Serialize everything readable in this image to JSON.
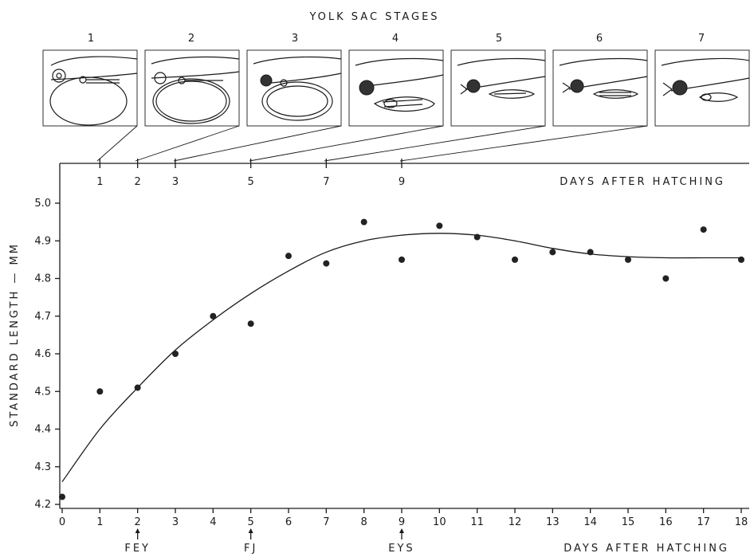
{
  "chart_data": {
    "type": "scatter",
    "title": "YOLK SAC STAGES",
    "xlabel": "DAYS AFTER HATCHING",
    "top_xlabel": "DAYS AFTER HATCHING",
    "ylabel": "STANDARD LENGTH  —  MM",
    "xlim": [
      0,
      18
    ],
    "ylim": [
      4.2,
      5.0
    ],
    "xticks": [
      0,
      1,
      2,
      3,
      4,
      5,
      6,
      7,
      8,
      9,
      10,
      11,
      12,
      13,
      14,
      15,
      16,
      17,
      18
    ],
    "yticks": [
      4.2,
      4.3,
      4.4,
      4.5,
      4.6,
      4.7,
      4.8,
      4.9,
      5.0
    ],
    "ytick_labels": [
      "4.2",
      "4.3",
      "4.4",
      "4.5",
      "4.6",
      "4.7",
      "4.8",
      "4.9",
      "5.0"
    ],
    "grid": false,
    "series": [
      {
        "kind": "points",
        "x": [
          0,
          1,
          2,
          3,
          4,
          5,
          6,
          7,
          8,
          9,
          10,
          11,
          12,
          13,
          14,
          15,
          16,
          17,
          18
        ],
        "y": [
          4.22,
          4.5,
          4.51,
          4.6,
          4.7,
          4.68,
          4.86,
          4.84,
          4.95,
          4.85,
          4.94,
          4.91,
          4.85,
          4.87,
          4.87,
          4.85,
          4.8,
          4.93,
          4.85
        ]
      },
      {
        "kind": "fitted_curve",
        "x": [
          0,
          1,
          2,
          3,
          4,
          5,
          6,
          7,
          8,
          9,
          10,
          11,
          12,
          13,
          14,
          15,
          16,
          17,
          18
        ],
        "y": [
          4.26,
          4.4,
          4.51,
          4.61,
          4.69,
          4.76,
          4.82,
          4.87,
          4.9,
          4.915,
          4.92,
          4.915,
          4.9,
          4.88,
          4.865,
          4.858,
          4.855,
          4.855,
          4.855
        ]
      }
    ],
    "stages": [
      {
        "label": "1",
        "day": 1
      },
      {
        "label": "2",
        "day": 2
      },
      {
        "label": "3",
        "day": 3
      },
      {
        "label": "4",
        "day": 5
      },
      {
        "label": "5",
        "day": 7
      },
      {
        "label": "6",
        "day": 9
      },
      {
        "label": "7",
        "day": null
      }
    ],
    "stage_day_ticks": [
      "1",
      "2",
      "3",
      "5",
      "7",
      "9"
    ],
    "stage_day_values": [
      1,
      2,
      3,
      5,
      7,
      9
    ],
    "event_markers": [
      {
        "day": 2,
        "label": "FEY"
      },
      {
        "day": 5,
        "label": "FJ"
      },
      {
        "day": 9,
        "label": "EYS"
      }
    ]
  }
}
